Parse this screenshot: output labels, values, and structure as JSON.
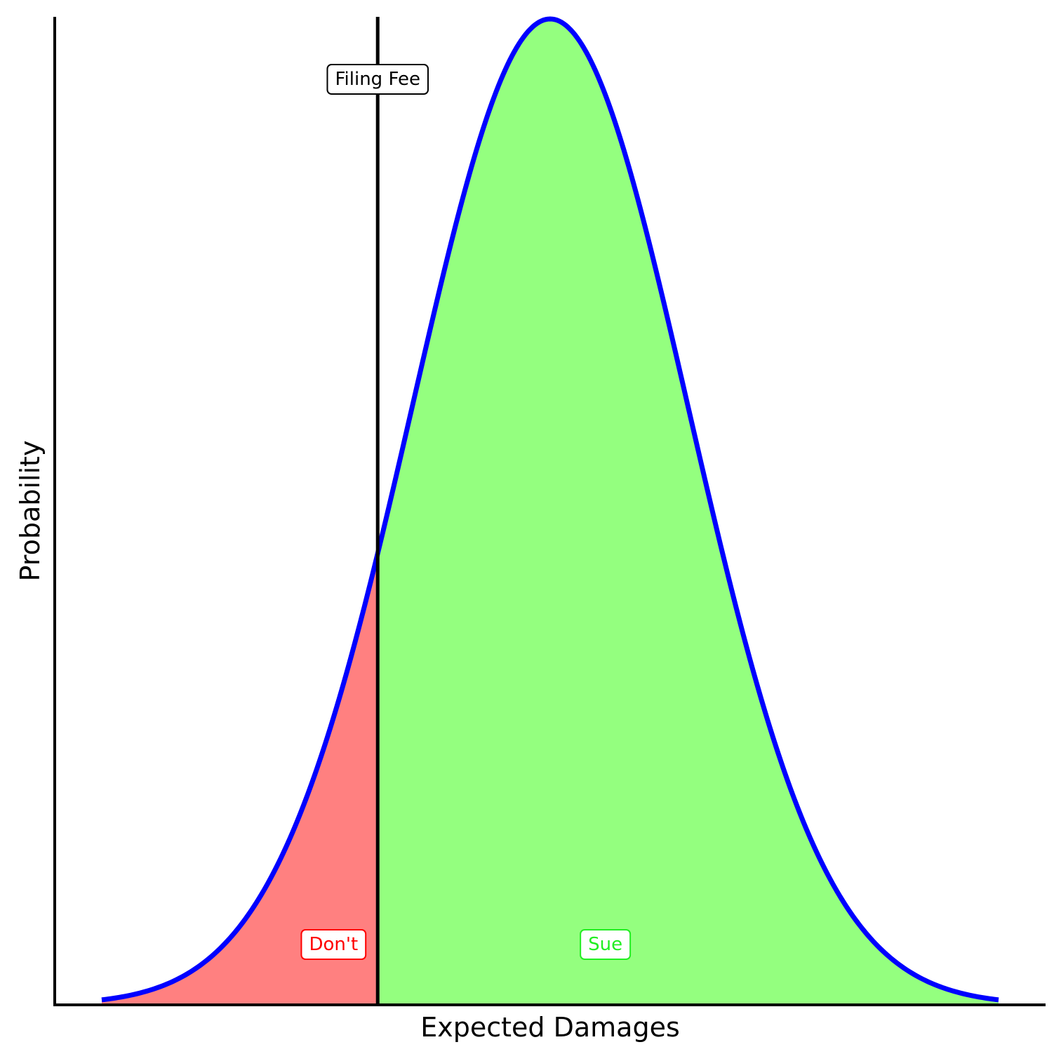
{
  "chart_data": {
    "type": "area",
    "title": "",
    "xlabel": "Expected Damages",
    "ylabel": "Probability",
    "x_ticks_shown": false,
    "y_ticks_shown": false,
    "grid": false,
    "distribution": {
      "shape": "normal",
      "mean": 0,
      "sd": 1,
      "x_range": [
        -3.25,
        3.25
      ]
    },
    "threshold": {
      "x": -1.25,
      "label": "Filing Fee"
    },
    "regions": [
      {
        "name": "Don't",
        "label": "Don't",
        "side": "below-threshold",
        "fill": "#ff8080",
        "label_color": "#ff0000"
      },
      {
        "name": "Sue",
        "label": "Sue",
        "side": "above-threshold",
        "fill": "#94ff7f",
        "label_color": "#22ee22"
      }
    ],
    "curve_color": "#0000ff",
    "threshold_color": "#000000"
  }
}
